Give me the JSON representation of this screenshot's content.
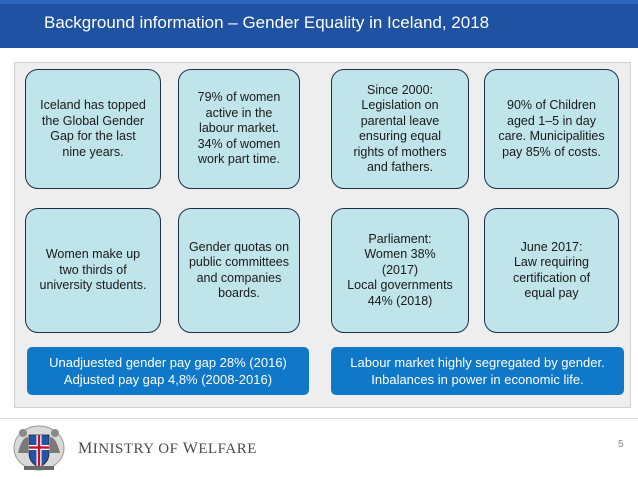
{
  "slide": {
    "title": "Background information – Gender Equality in Iceland, 2018",
    "page_number": "5"
  },
  "cards": [
    {
      "text": "Iceland has topped\nthe Global Gender\nGap for the last\nnine years."
    },
    {
      "text": "79% of women\nactive in the\nlabour market.\n34% of women\nwork part time."
    },
    {
      "text": "Since 2000:\nLegislation on\nparental leave\nensuring equal\nrights of mothers\nand fathers."
    },
    {
      "text": "90% of Children\naged 1–5 in day\ncare. Municipalities\npay 85% of costs."
    },
    {
      "text": "Women make up\ntwo thirds of\nuniversity students."
    },
    {
      "text": "Gender quotas on\npublic committees\nand companies\nboards."
    },
    {
      "text": "Parliament:\nWomen 38%\n(2017)\nLocal governments\n44% (2018)"
    },
    {
      "text": "June 2017:\nLaw requiring\ncertification of\nequal pay"
    }
  ],
  "banners": [
    {
      "text": "Unadjuested gender pay gap 28% (2016)\nAdjusted pay gap 4,8% (2008-2016)"
    },
    {
      "text": "Labour market highly segregated by gender.\nInbalances in power in economic life."
    }
  ],
  "footer": {
    "ministry_first_initial": "M",
    "ministry_first_rest": "INISTRY OF ",
    "ministry_second_initial": "W",
    "ministry_second_rest": "ELFARE",
    "crest_icon": "iceland-coat-of-arms-icon"
  },
  "colors": {
    "header_bg": "#1f52a3",
    "card_bg": "#bfe4ea",
    "banner_bg": "#0f78c8",
    "panel_bg": "#eeeeee"
  }
}
